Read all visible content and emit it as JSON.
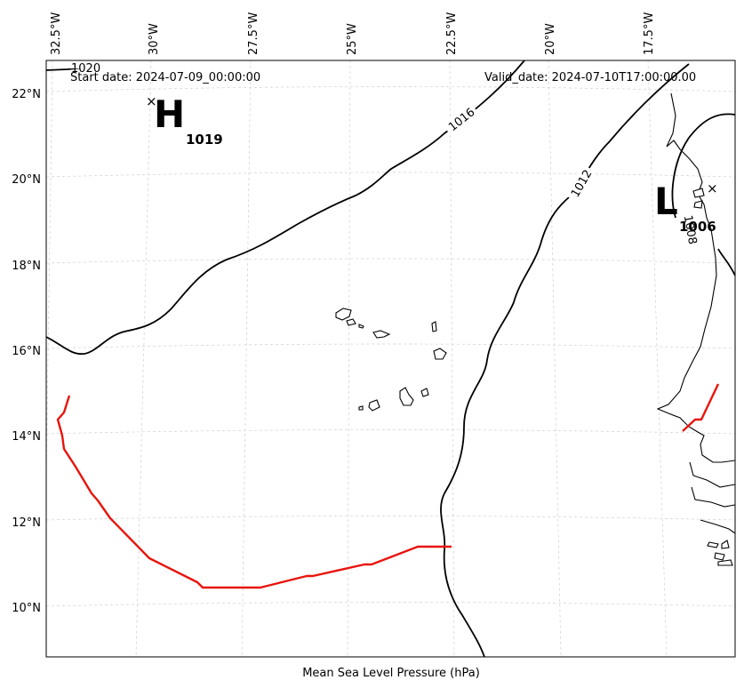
{
  "map": {
    "start_date": "Start date: 2024-07-09_00:00:00",
    "valid_date": "Valid_date: 2024-07-10T17:00:00.00",
    "caption": "Mean Sea Level Pressure (hPa)",
    "lon_ticks": [
      "32.5°W",
      "30°W",
      "27.5°W",
      "25°W",
      "22.5°W",
      "20°W",
      "17.5°W"
    ],
    "lat_ticks": [
      "22°N",
      "20°N",
      "18°N",
      "16°N",
      "14°N",
      "12°N",
      "10°N"
    ],
    "contours": [
      {
        "value": 1020,
        "label": "1020"
      },
      {
        "value": 1016,
        "label": "1016"
      },
      {
        "value": 1012,
        "label": "1012"
      },
      {
        "value": 1008,
        "label": "1008"
      }
    ],
    "high": {
      "letter": "H",
      "value": "1019",
      "lon": -29.9,
      "lat": 21.8
    },
    "low": {
      "letter": "L",
      "value": "1006",
      "lon": -16.0,
      "lat": 19.8
    },
    "colors": {
      "track": "#e8140c",
      "contour": "#000000",
      "grid": "#cfcfcf"
    }
  }
}
